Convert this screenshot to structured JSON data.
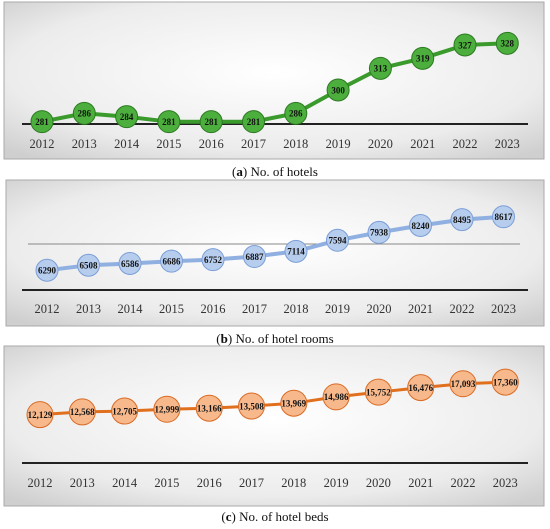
{
  "colors": {
    "hotels_line": "#3a9a2c",
    "hotels_marker": "#4cae3c",
    "hotels_marker_stroke": "#2d7a22",
    "rooms_line": "#8fb0e0",
    "rooms_marker": "#b7cdee",
    "rooms_marker_stroke": "#7a9ed6",
    "beds_line": "#e0701e",
    "beds_marker": "#f7b98c",
    "beds_marker_stroke": "#d96b25",
    "axis": "#222222",
    "panel_border": "#aaaaaa"
  },
  "chart_data": [
    {
      "type": "line",
      "panel_letter": "a",
      "caption": "No. of hotels",
      "categories": [
        "2012",
        "2013",
        "2014",
        "2015",
        "2016",
        "2017",
        "2018",
        "2019",
        "2020",
        "2021",
        "2022",
        "2023"
      ],
      "values": [
        281,
        286,
        284,
        281,
        281,
        281,
        286,
        300,
        313,
        319,
        327,
        328
      ],
      "value_labels": [
        "281",
        "286",
        "284",
        "281",
        "281",
        "281",
        "286",
        "300",
        "313",
        "319",
        "327",
        "328"
      ],
      "ylim": [
        240,
        336
      ],
      "grid": false,
      "marker": "circle"
    },
    {
      "type": "line",
      "panel_letter": "b",
      "caption": "No. of hotel rooms",
      "categories": [
        "2012",
        "2013",
        "2014",
        "2015",
        "2016",
        "2017",
        "2018",
        "2019",
        "2020",
        "2021",
        "2022",
        "2023"
      ],
      "values": [
        6290,
        6508,
        6586,
        6686,
        6752,
        6887,
        7114,
        7594,
        7938,
        8240,
        8495,
        8617
      ],
      "value_labels": [
        "6290",
        "6508",
        "6586",
        "6686",
        "6752",
        "6887",
        "7114",
        "7594",
        "7938",
        "8240",
        "8495",
        "8617"
      ],
      "ylim": [
        5300,
        9000
      ],
      "grid": false,
      "marker": "circle"
    },
    {
      "type": "line",
      "panel_letter": "c",
      "caption": "No. of hotel beds",
      "categories": [
        "2012",
        "2013",
        "2014",
        "2015",
        "2016",
        "2017",
        "2018",
        "2019",
        "2020",
        "2021",
        "2022",
        "2023"
      ],
      "values": [
        12129,
        12568,
        12705,
        12999,
        13166,
        13508,
        13969,
        14986,
        15752,
        16476,
        17093,
        17360
      ],
      "value_labels": [
        "12,129",
        "12,568",
        "12,705",
        "12,999",
        "13,166",
        "13,508",
        "13,969",
        "14,986",
        "15,752",
        "16,476",
        "17,093",
        "17,360"
      ],
      "ylim": [
        5000,
        18500
      ],
      "grid": false,
      "marker": "circle"
    }
  ]
}
